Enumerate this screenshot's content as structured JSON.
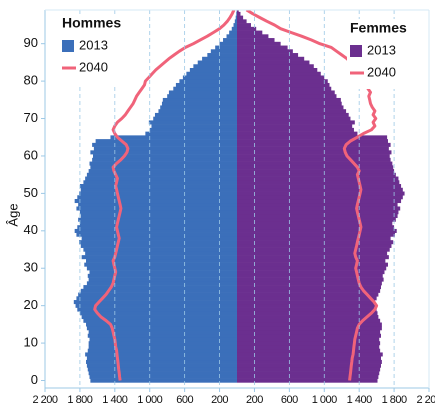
{
  "chart_data": {
    "type": "pyramid",
    "ylabel": "Âge",
    "ages": [
      0,
      1,
      2,
      3,
      4,
      5,
      6,
      7,
      8,
      9,
      10,
      11,
      12,
      13,
      14,
      15,
      16,
      17,
      18,
      19,
      20,
      21,
      22,
      23,
      24,
      25,
      26,
      27,
      28,
      29,
      30,
      31,
      32,
      33,
      34,
      35,
      36,
      37,
      38,
      39,
      40,
      41,
      42,
      43,
      44,
      45,
      46,
      47,
      48,
      49,
      50,
      51,
      52,
      53,
      54,
      55,
      56,
      57,
      58,
      59,
      60,
      61,
      62,
      63,
      64,
      65,
      66,
      67,
      68,
      69,
      70,
      71,
      72,
      73,
      74,
      75,
      76,
      77,
      78,
      79,
      80,
      81,
      82,
      83,
      84,
      85,
      86,
      87,
      88,
      89,
      90,
      91,
      92,
      93,
      94,
      95,
      96,
      97,
      98,
      99
    ],
    "left": {
      "title": "Hommes",
      "series": [
        {
          "name": "2013",
          "kind": "bar",
          "color": "#3b6fba",
          "values": [
            1680,
            1690,
            1700,
            1710,
            1720,
            1730,
            1720,
            1740,
            1710,
            1700,
            1700,
            1690,
            1710,
            1700,
            1720,
            1730,
            1760,
            1780,
            1800,
            1830,
            1850,
            1870,
            1840,
            1820,
            1790,
            1760,
            1720,
            1700,
            1710,
            1690,
            1720,
            1750,
            1730,
            1780,
            1740,
            1760,
            1790,
            1810,
            1780,
            1840,
            1860,
            1830,
            1800,
            1820,
            1790,
            1800,
            1840,
            1820,
            1860,
            1830,
            1810,
            1790,
            1800,
            1760,
            1740,
            1720,
            1700,
            1680,
            1690,
            1660,
            1650,
            1680,
            1640,
            1660,
            1620,
            1450,
            1050,
            1000,
            980,
            1010,
            960,
            940,
            900,
            880,
            860,
            850,
            800,
            780,
            730,
            700,
            660,
            620,
            580,
            540,
            500,
            450,
            400,
            340,
            300,
            250,
            200,
            160,
            120,
            90,
            60,
            40,
            25,
            15,
            8,
            4
          ]
        },
        {
          "name": "2040",
          "kind": "line",
          "color": "#f0637a",
          "values": [
            1340,
            1345,
            1350,
            1355,
            1360,
            1365,
            1370,
            1375,
            1380,
            1390,
            1395,
            1400,
            1410,
            1420,
            1430,
            1450,
            1500,
            1560,
            1600,
            1630,
            1620,
            1580,
            1540,
            1500,
            1470,
            1440,
            1420,
            1410,
            1400,
            1390,
            1400,
            1410,
            1420,
            1400,
            1390,
            1380,
            1370,
            1360,
            1350,
            1360,
            1370,
            1380,
            1370,
            1360,
            1350,
            1340,
            1330,
            1340,
            1350,
            1360,
            1370,
            1380,
            1390,
            1380,
            1370,
            1390,
            1410,
            1420,
            1380,
            1330,
            1290,
            1260,
            1250,
            1270,
            1320,
            1370,
            1400,
            1420,
            1400,
            1370,
            1320,
            1280,
            1250,
            1220,
            1190,
            1170,
            1150,
            1120,
            1090,
            1060,
            1050,
            1010,
            970,
            930,
            880,
            830,
            780,
            720,
            660,
            590,
            500,
            420,
            340,
            270,
            200,
            150,
            110,
            80,
            55,
            35
          ]
        }
      ]
    },
    "right": {
      "title": "Femmes",
      "series": [
        {
          "name": "2013",
          "kind": "bar",
          "color": "#6b2f8f",
          "values": [
            1610,
            1620,
            1630,
            1640,
            1650,
            1660,
            1650,
            1670,
            1640,
            1630,
            1640,
            1630,
            1650,
            1640,
            1660,
            1660,
            1640,
            1620,
            1610,
            1600,
            1590,
            1580,
            1600,
            1620,
            1640,
            1650,
            1660,
            1680,
            1670,
            1690,
            1710,
            1730,
            1700,
            1740,
            1720,
            1750,
            1770,
            1790,
            1760,
            1810,
            1830,
            1800,
            1780,
            1820,
            1840,
            1850,
            1870,
            1840,
            1880,
            1900,
            1920,
            1900,
            1880,
            1860,
            1850,
            1820,
            1800,
            1790,
            1780,
            1760,
            1750,
            1770,
            1740,
            1760,
            1730,
            1720,
            1380,
            1340,
            1320,
            1350,
            1300,
            1280,
            1250,
            1220,
            1200,
            1190,
            1140,
            1120,
            1080,
            1060,
            1040,
            1000,
            960,
            920,
            880,
            830,
            770,
            700,
            640,
            580,
            500,
            430,
            360,
            290,
            220,
            160,
            110,
            70,
            40,
            20
          ]
        },
        {
          "name": "2040",
          "kind": "line",
          "color": "#f0637a",
          "values": [
            1290,
            1295,
            1300,
            1305,
            1310,
            1315,
            1320,
            1330,
            1335,
            1340,
            1345,
            1350,
            1360,
            1370,
            1380,
            1400,
            1440,
            1490,
            1540,
            1580,
            1600,
            1570,
            1530,
            1490,
            1450,
            1420,
            1400,
            1390,
            1380,
            1370,
            1360,
            1370,
            1380,
            1360,
            1350,
            1360,
            1370,
            1380,
            1390,
            1400,
            1410,
            1420,
            1410,
            1400,
            1390,
            1380,
            1370,
            1380,
            1390,
            1400,
            1410,
            1420,
            1410,
            1400,
            1390,
            1380,
            1400,
            1380,
            1340,
            1300,
            1260,
            1240,
            1230,
            1250,
            1300,
            1380,
            1450,
            1540,
            1580,
            1560,
            1590,
            1560,
            1580,
            1550,
            1530,
            1520,
            1510,
            1530,
            1500,
            1490,
            1470,
            1450,
            1440,
            1410,
            1380,
            1300,
            1260,
            1200,
            1140,
            1080,
            950,
            850,
            740,
            620,
            500,
            430,
            340,
            260,
            180,
            110
          ]
        }
      ]
    },
    "xlim": [
      -2200,
      2200
    ],
    "xticks": [
      {
        "value": -2200,
        "label": "2 200"
      },
      {
        "value": -1800,
        "label": "1 800"
      },
      {
        "value": -1400,
        "label": "1 400"
      },
      {
        "value": -1000,
        "label": "1 000"
      },
      {
        "value": -600,
        "label": "600"
      },
      {
        "value": -200,
        "label": "200"
      },
      200,
      600,
      {
        "value": 1000,
        "label": "1 000"
      },
      {
        "value": 1400,
        "label": "1 400"
      },
      {
        "value": 1800,
        "label": "1 800"
      },
      {
        "value": 2200,
        "label": "2 200"
      }
    ],
    "ylim": [
      -2,
      99
    ],
    "yticks": [
      0,
      10,
      20,
      30,
      40,
      50,
      60,
      70,
      80,
      90
    ],
    "grid": true
  }
}
